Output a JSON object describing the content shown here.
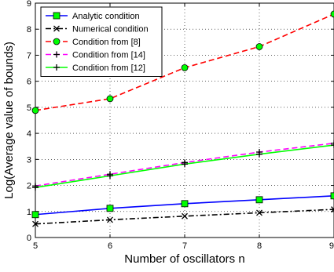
{
  "chart_data": {
    "type": "line",
    "xlabel": "Number of oscillators n",
    "ylabel": "Log(Average value of bounds)",
    "x": [
      5,
      6,
      7,
      8,
      9
    ],
    "xlim": [
      5,
      9
    ],
    "ylim": [
      0,
      9
    ],
    "xticks": [
      "5",
      "6",
      "7",
      "8",
      "9"
    ],
    "yticks": [
      "0",
      "1",
      "2",
      "3",
      "4",
      "5",
      "6",
      "7",
      "8",
      "9"
    ],
    "grid": true,
    "legend_position": "top-left",
    "series": [
      {
        "name": "Analytic condition",
        "values": [
          0.88,
          1.12,
          1.3,
          1.45,
          1.6
        ],
        "color": "#0000ff",
        "dash": "solid",
        "marker": "square",
        "marker_fill": "#00ff00"
      },
      {
        "name": "Numerical condition",
        "values": [
          0.52,
          0.68,
          0.82,
          0.95,
          1.08
        ],
        "color": "#000000",
        "dash": "dashdot",
        "marker": "x",
        "marker_fill": "none"
      },
      {
        "name": "Condition from [8]",
        "values": [
          4.88,
          5.33,
          6.52,
          7.33,
          8.58
        ],
        "color": "#ff0000",
        "dash": "dashed",
        "marker": "circle",
        "marker_fill": "#00ff00"
      },
      {
        "name": "Condition from [14]",
        "values": [
          1.98,
          2.43,
          2.88,
          3.28,
          3.62
        ],
        "color": "#ff00ff",
        "dash": "dashed",
        "marker": "plus",
        "marker_fill": "none"
      },
      {
        "name": "Condition from [12]",
        "values": [
          1.92,
          2.37,
          2.82,
          3.2,
          3.55
        ],
        "color": "#00ff00",
        "dash": "solid",
        "marker": "plus",
        "marker_fill": "none"
      }
    ]
  }
}
